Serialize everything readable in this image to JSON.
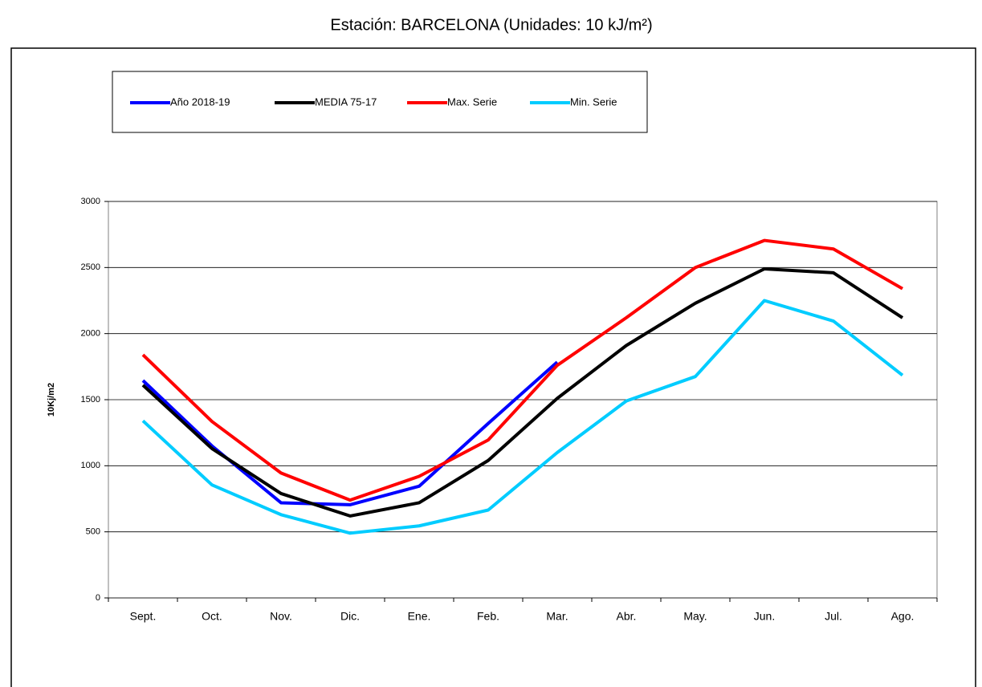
{
  "chart_data": {
    "type": "line",
    "title": "Estación: BARCELONA (Unidades: 10 kJ/m²)",
    "y_label": "10Kj/m2",
    "categories": [
      "Sept.",
      "Oct.",
      "Nov.",
      "Dic.",
      "Ene.",
      "Feb.",
      "Mar.",
      "Abr.",
      "May.",
      "Jun.",
      "Jul.",
      "Ago."
    ],
    "series": [
      {
        "name": "Año 2018-19",
        "color": "#0000ff",
        "values": [
          1645,
          1150,
          720,
          705,
          845,
          1320,
          1785,
          null,
          null,
          null,
          null,
          null
        ]
      },
      {
        "name": "MEDIA 75-17",
        "color": "#000000",
        "values": [
          1610,
          1130,
          790,
          620,
          720,
          1040,
          1510,
          1910,
          2230,
          2490,
          2460,
          2120
        ]
      },
      {
        "name": "Max. Serie",
        "color": "#ff0000",
        "values": [
          1840,
          1335,
          945,
          740,
          920,
          1195,
          1760,
          2120,
          2500,
          2705,
          2640,
          2340
        ]
      },
      {
        "name": "Min. Serie",
        "color": "#00ccff",
        "values": [
          1340,
          855,
          630,
          490,
          545,
          665,
          1100,
          1490,
          1675,
          2250,
          2095,
          1685
        ]
      }
    ],
    "ylim": [
      0,
      3000
    ],
    "yticks": [
      0,
      500,
      1000,
      1500,
      2000,
      2500,
      3000
    ],
    "grid": true
  }
}
